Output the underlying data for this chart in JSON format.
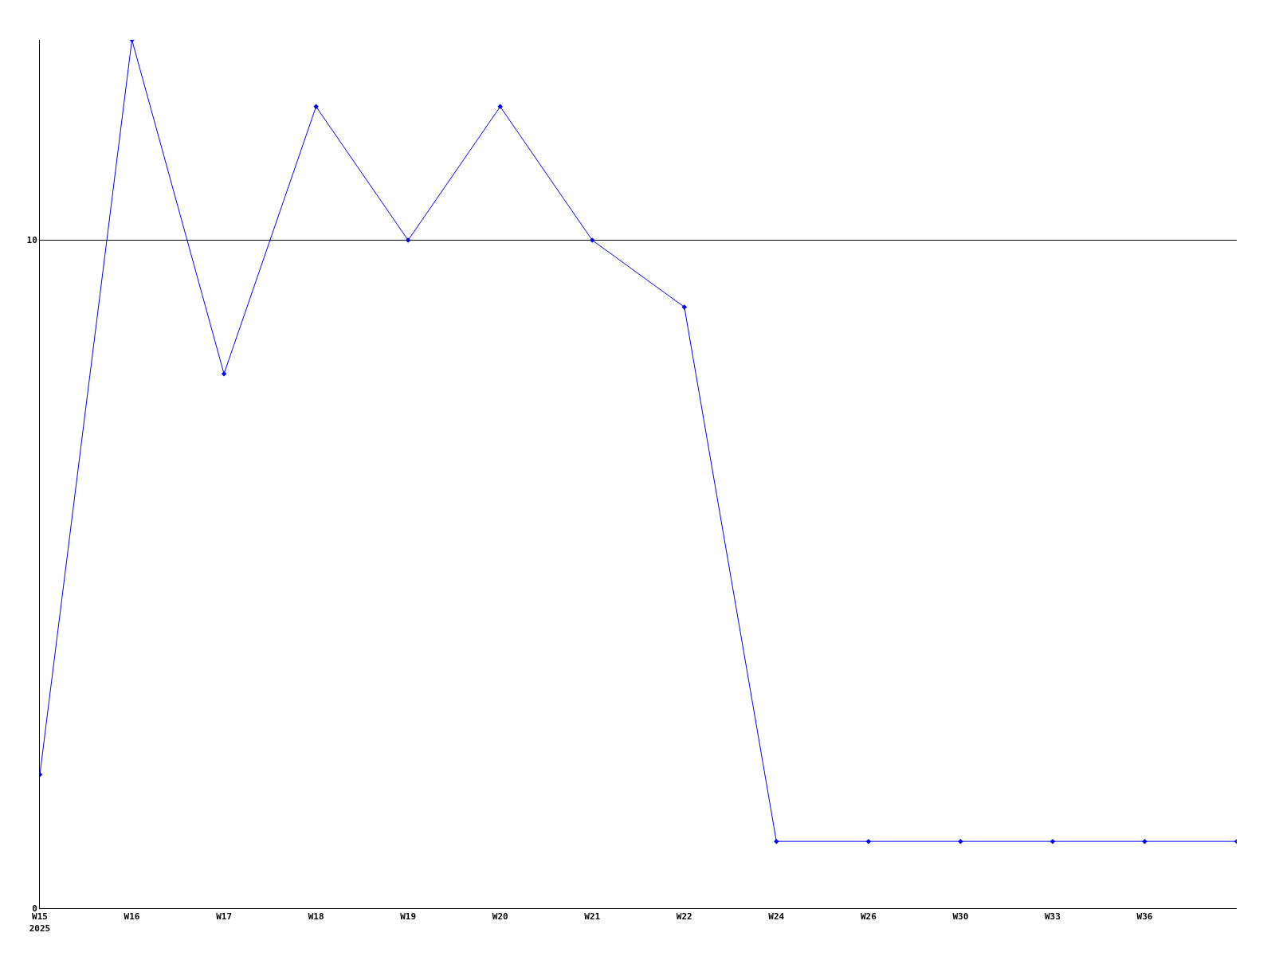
{
  "chart_data": {
    "type": "line",
    "categories": [
      "W15\n2025",
      "W16",
      "W17",
      "W18",
      "W19",
      "W20",
      "W21",
      "W22",
      "W24",
      "W26",
      "W30",
      "W33",
      "W36",
      null
    ],
    "series": [
      {
        "color": "#0000ff",
        "values": [
          2,
          13,
          8,
          12,
          10,
          12,
          10,
          9,
          1,
          1,
          1,
          1,
          1,
          1
        ]
      }
    ],
    "ylim": [
      0,
      13
    ],
    "yticks": [
      0,
      10
    ],
    "grid": "y",
    "legend": false,
    "marker": "diamond",
    "line_style": "solid"
  }
}
